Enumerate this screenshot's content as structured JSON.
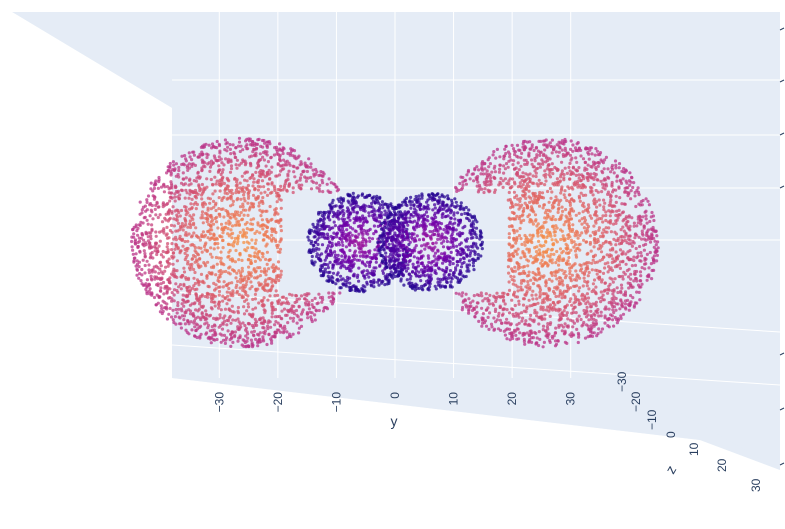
{
  "chart_data": {
    "type": "scatter3d",
    "title": "",
    "description_of_marks": "",
    "colorscale": [
      "#0d0887",
      "#46039f",
      "#7201a8",
      "#9c179e",
      "#bd3786",
      "#d8576b",
      "#ed7953",
      "#fb9f3a"
    ],
    "background_color": "#e5ecf6",
    "grid_color": "#ffffff",
    "axes": {
      "y": {
        "title": "y",
        "range": [
          -35,
          35
        ],
        "ticks": [
          "−30",
          "−20",
          "−10",
          "0",
          "10",
          "20",
          "30"
        ]
      },
      "z": {
        "title": "z",
        "range": [
          -35,
          35
        ],
        "ticks": [
          "−30",
          "−20",
          "−10",
          "0",
          "10",
          "20",
          "30"
        ]
      },
      "x": {
        "title": "",
        "range": [
          -35,
          35
        ],
        "ticks": [
          "",
          "",
          "",
          "",
          "",
          "",
          ""
        ]
      }
    },
    "clusters": [
      {
        "center_y": -26,
        "center_z": 0,
        "radius": 19,
        "kind": "outer-lobe",
        "color_range": [
          0.55,
          0.95
        ]
      },
      {
        "center_y": 26,
        "center_z": 0,
        "radius": 19,
        "kind": "outer-lobe",
        "color_range": [
          0.55,
          0.95
        ]
      },
      {
        "center_y": -6,
        "center_z": 0,
        "radius": 9,
        "kind": "inner-lobe",
        "color_range": [
          0.05,
          0.45
        ]
      },
      {
        "center_y": 6,
        "center_z": 0,
        "radius": 9,
        "kind": "inner-lobe",
        "color_range": [
          0.05,
          0.45
        ]
      }
    ],
    "grid": true,
    "legend": "none"
  }
}
